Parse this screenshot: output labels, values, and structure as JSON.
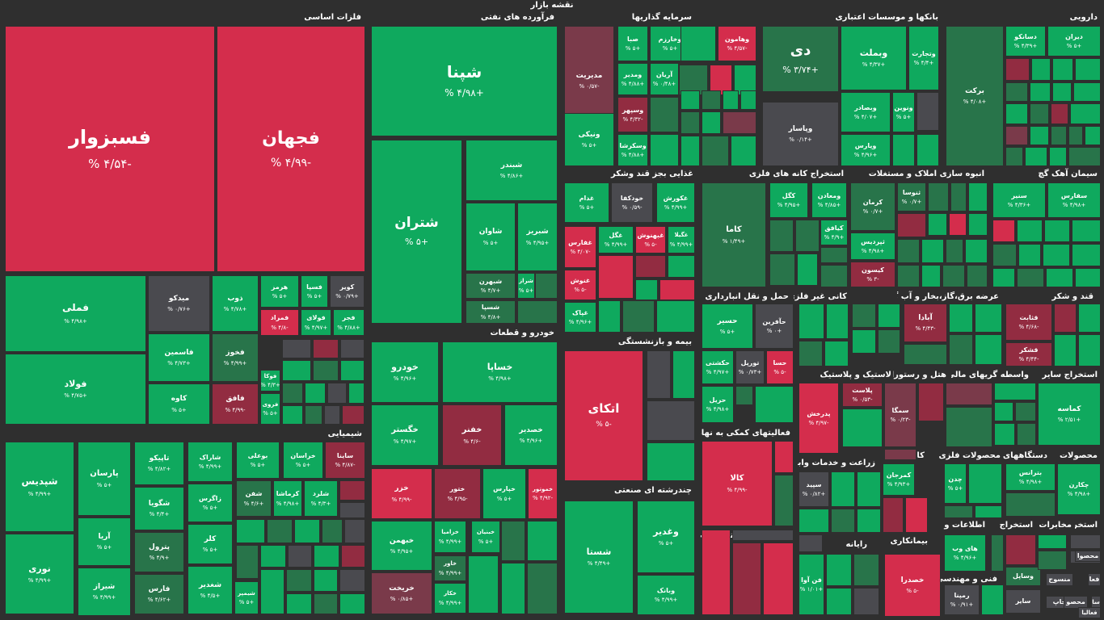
{
  "title": "نقشه بازار",
  "colors": {
    "green": "#0fa95e",
    "dark_green": "#28744a",
    "gray_green": "#3f6852",
    "neutral": "#4a4a4f",
    "red": "#d42d4c",
    "dark_red": "#922c41",
    "background": "#2f2f2f"
  },
  "sectors": [
    {
      "key": "s1",
      "label": "فلزات اساسی"
    },
    {
      "key": "s2",
      "label": "فرآورده های نفتی"
    },
    {
      "key": "s3",
      "label": "سرمایه گذاریها"
    },
    {
      "key": "s4",
      "label": "بانکها و موسسات اعتباری"
    },
    {
      "key": "s5",
      "label": "دارویی"
    },
    {
      "key": "s6",
      "label": "شیمیایی"
    },
    {
      "key": "s7",
      "label": "خودرو و قطعات"
    },
    {
      "key": "s8",
      "label": "غذایی بجز قند وشکر"
    },
    {
      "key": "s9",
      "label": "استخراج کانه های فلزی"
    },
    {
      "key": "s10",
      "label": "انبوه سازی املاک و مستغلات"
    },
    {
      "key": "s11",
      "label": "سیمان آهک گچ"
    },
    {
      "key": "s12",
      "label": "حمل و نقل انبارداری و"
    },
    {
      "key": "s13",
      "label": "کانی غیر فلزی"
    },
    {
      "key": "s14",
      "label": "عرضه برق،گاز،بخار و آب گرم"
    },
    {
      "key": "s15",
      "label": "قند و شکر"
    },
    {
      "key": "s16",
      "label": "بیمه و بازنشستگی"
    },
    {
      "key": "s17",
      "label": "لاستیک و پلاستیک"
    },
    {
      "key": "s18",
      "label": "هتل و رستوران"
    },
    {
      "key": "s19",
      "label": "واسطه گریهای مالی"
    },
    {
      "key": "s20",
      "label": "استخراج سایر"
    },
    {
      "key": "s21",
      "label": "فعالیتهای کمکی به نهاد"
    },
    {
      "key": "s22",
      "label": "زراعت و خدمات وابسته"
    },
    {
      "key": "s23",
      "label": "کاشی و"
    },
    {
      "key": "s24",
      "label": "محصولات فلزی"
    },
    {
      "key": "s25",
      "label": "دستگاههای"
    },
    {
      "key": "s26",
      "label": "محصولات"
    },
    {
      "key": "s27",
      "label": "چندرشته ای صنعتی"
    },
    {
      "key": "s28",
      "label": "ماشین آلات و تجهیزات"
    },
    {
      "key": "s29",
      "label": "رایانه"
    },
    {
      "key": "s30",
      "label": "بیمانکاری"
    },
    {
      "key": "s31",
      "label": "اطلاعات و"
    },
    {
      "key": "s32",
      "label": "فنی و مهندسی"
    },
    {
      "key": "s33",
      "label": "استخراج"
    },
    {
      "key": "s34",
      "label": "مخابرات"
    },
    {
      "key": "s35",
      "label": "استخر"
    }
  ],
  "tiles": [
    {
      "symbol": "فسبزوار",
      "change": "-۴/۵۴ %"
    },
    {
      "symbol": "فجهان",
      "change": "-۴/۹۹ %"
    },
    {
      "symbol": "فملی",
      "change": "+۴/۹۸ %"
    },
    {
      "symbol": "فولاد",
      "change": "+۴/۷۵ %"
    },
    {
      "symbol": "میدکو",
      "change": "+۰/۷۶ %"
    },
    {
      "symbol": "فاسمین",
      "change": "+۴/۷۳ %"
    },
    {
      "symbol": "کاوه",
      "change": "+۵ %"
    },
    {
      "symbol": "ذوب",
      "change": "+۴/۷۸ %"
    },
    {
      "symbol": "هرمز",
      "change": "+۵ %"
    },
    {
      "symbol": "فسپا",
      "change": "+۵ %"
    },
    {
      "symbol": "کویر",
      "change": "+۰/۷۹ %"
    },
    {
      "symbol": "فمراد",
      "change": "-۴/۸ %"
    },
    {
      "symbol": "فولای",
      "change": "+۴/۹۷ %"
    },
    {
      "symbol": "فجر",
      "change": "+۴/۸۸ %"
    },
    {
      "symbol": "فخوز",
      "change": "+۴/۹۹ %"
    },
    {
      "symbol": "فوکا",
      "change": "+۴/۳ %"
    },
    {
      "symbol": "فافق",
      "change": "-۴/۹۹ %"
    },
    {
      "symbol": "فروی",
      "change": "+۵ %"
    },
    {
      "symbol": "شپنا",
      "change": "+۴/۹۸ %"
    },
    {
      "symbol": "شتران",
      "change": "+۵ %"
    },
    {
      "symbol": "شبندر",
      "change": "+۴/۸۶ %"
    },
    {
      "symbol": "شاوان",
      "change": "+۵ %"
    },
    {
      "symbol": "شبریز",
      "change": "+۴/۹۵ %"
    },
    {
      "symbol": "شبهرن",
      "change": "+۴/۷ %"
    },
    {
      "symbol": "شراز",
      "change": "+۵ %"
    },
    {
      "symbol": "شسپا",
      "change": "+۴/۸ %"
    },
    {
      "symbol": "مدیریت",
      "change": "-۰/۵۷ %"
    },
    {
      "symbol": "صبا",
      "change": "+۵ %"
    },
    {
      "symbol": "وخارزم",
      "change": "+۵ %"
    },
    {
      "symbol": "وهامون",
      "change": "-۴/۵۷ %"
    },
    {
      "symbol": "ومدیر",
      "change": "+۴/۸۸ %"
    },
    {
      "symbol": "آریان",
      "change": "+۰/۴۸ %"
    },
    {
      "symbol": "وسپهر",
      "change": "-۴/۳۲ %"
    },
    {
      "symbol": "ونیکی",
      "change": "+۵ %"
    },
    {
      "symbol": "وسکرشا",
      "change": "+۴/۸۸ %"
    },
    {
      "symbol": "دی",
      "change": "+۳/۷۴ %"
    },
    {
      "symbol": "وبملت",
      "change": "+۴/۳۷ %"
    },
    {
      "symbol": "وتجارت",
      "change": "+۴/۴ %"
    },
    {
      "symbol": "وبصادر",
      "change": "+۴/۰۷ %"
    },
    {
      "symbol": "ونوین",
      "change": "+۵ %"
    },
    {
      "symbol": "وپاسار",
      "change": "+۰/۱۴ %"
    },
    {
      "symbol": "وپارس",
      "change": "+۴/۹۶ %"
    },
    {
      "symbol": "برکت",
      "change": "+۴/۰۸ %"
    },
    {
      "symbol": "دسانکو",
      "change": "+۴/۳۹ %"
    },
    {
      "symbol": "دیران",
      "change": "+۵ %"
    },
    {
      "symbol": "شپدیس",
      "change": "+۴/۹۹ %"
    },
    {
      "symbol": "نوری",
      "change": "+۴/۹۹ %"
    },
    {
      "symbol": "پارسان",
      "change": "+۵ %"
    },
    {
      "symbol": "آریا",
      "change": "+۵ %"
    },
    {
      "symbol": "شیراز",
      "change": "+۴/۹۹ %"
    },
    {
      "symbol": "تاپیکو",
      "change": "+۴/۸۲ %"
    },
    {
      "symbol": "شگویا",
      "change": "+۴/۴ %"
    },
    {
      "symbol": "پترول",
      "change": "+۴/۹ %"
    },
    {
      "symbol": "فارس",
      "change": "+۴/۶۲ %"
    },
    {
      "symbol": "شاراک",
      "change": "+۴/۹۹ %"
    },
    {
      "symbol": "زاگرس",
      "change": "+۵ %"
    },
    {
      "symbol": "کلر",
      "change": "+۵ %"
    },
    {
      "symbol": "شغدیر",
      "change": "+۴/۵ %"
    },
    {
      "symbol": "بوعلی",
      "change": "+۵ %"
    },
    {
      "symbol": "خراسان",
      "change": "+۵ %"
    },
    {
      "symbol": "ساینا",
      "change": "-۴/۸۷ %"
    },
    {
      "symbol": "شفن",
      "change": "+۴/۶ %"
    },
    {
      "symbol": "کرماشا",
      "change": "+۴/۹۸ %"
    },
    {
      "symbol": "شلرد",
      "change": "+۴/۳ %"
    },
    {
      "symbol": "شیمپر",
      "change": "+۵ %"
    },
    {
      "symbol": "خودرو",
      "change": "+۴/۹۶ %"
    },
    {
      "symbol": "خساپا",
      "change": "+۴/۹۸ %"
    },
    {
      "symbol": "خگستر",
      "change": "+۴/۹۷ %"
    },
    {
      "symbol": "خفنر",
      "change": "-۴/۶ %"
    },
    {
      "symbol": "خصدیر",
      "change": "+۴/۹۶ %"
    },
    {
      "symbol": "خزر",
      "change": "-۴/۹۹ %"
    },
    {
      "symbol": "ختور",
      "change": "-۴/۹۵ %"
    },
    {
      "symbol": "خپارس",
      "change": "+۵ %"
    },
    {
      "symbol": "خموتور",
      "change": "-۴/۹۲ %"
    },
    {
      "symbol": "خبهمن",
      "change": "+۴/۹۵ %"
    },
    {
      "symbol": "خزامیا",
      "change": "+۴/۹۹ %"
    },
    {
      "symbol": "خبنیان",
      "change": "+۵ %"
    },
    {
      "symbol": "خاور",
      "change": "+۴/۹۹ %"
    },
    {
      "symbol": "خکار",
      "change": "+۴/۹۹ %"
    },
    {
      "symbol": "خریخت",
      "change": "+۰/۸۵ %"
    },
    {
      "symbol": "غدام",
      "change": "+۵ %"
    },
    {
      "symbol": "خودکفا",
      "change": "-۰/۵۹ %"
    },
    {
      "symbol": "غکورش",
      "change": "+۴/۹۹ %"
    },
    {
      "symbol": "غفارس",
      "change": "-۴/۰۷ %"
    },
    {
      "symbol": "غگل",
      "change": "+۴/۹۹ %"
    },
    {
      "symbol": "غبهنوش",
      "change": "-۵ %"
    },
    {
      "symbol": "غگیلا",
      "change": "+۴/۹۹ %"
    },
    {
      "symbol": "غنوش",
      "change": "-۵ %"
    },
    {
      "symbol": "غپاک",
      "change": "+۴/۹۶ %"
    },
    {
      "symbol": "کاما",
      "change": "+۱/۴۹ %"
    },
    {
      "symbol": "کگل",
      "change": "+۴/۹۵ %"
    },
    {
      "symbol": "ومعادن",
      "change": "+۴/۸۵ %"
    },
    {
      "symbol": "کیافق",
      "change": "+۴/۹ %"
    },
    {
      "symbol": "کرمان",
      "change": "+۰/۷ %"
    },
    {
      "symbol": "ثنوسا",
      "change": "+۰/۷ %"
    },
    {
      "symbol": "ثپردیس",
      "change": "+۴/۹۸ %"
    },
    {
      "symbol": "کیسون",
      "change": "-۳ %"
    },
    {
      "symbol": "سنیر",
      "change": "+۴/۳۶ %"
    },
    {
      "symbol": "سفارس",
      "change": "+۴/۹۸ %"
    },
    {
      "symbol": "حسیر",
      "change": "+۵ %"
    },
    {
      "symbol": "حآفرین",
      "change": "+۰ %"
    },
    {
      "symbol": "حکشتی",
      "change": "+۴/۹۷ %"
    },
    {
      "symbol": "تورپل",
      "change": "+۰/۷۳ %"
    },
    {
      "symbol": "حسا",
      "change": "-۵ %"
    },
    {
      "symbol": "حریل",
      "change": "+۴/۹۸ %"
    },
    {
      "symbol": "آبادا",
      "change": "-۴/۴۳ %"
    },
    {
      "symbol": "قثابت",
      "change": "-۴/۶۸ %"
    },
    {
      "symbol": "قشکر",
      "change": "-۴/۴۴ %"
    },
    {
      "symbol": "اتکای",
      "change": "-۵ %"
    },
    {
      "symbol": "پلاست",
      "change": "-۰/۵۳ %"
    },
    {
      "symbol": "پدرخش",
      "change": "-۴/۹۷ %"
    },
    {
      "symbol": "سمگا",
      "change": "-۰/۲۳ %"
    },
    {
      "symbol": "کماسه",
      "change": "+۲/۵۱ %"
    },
    {
      "symbol": "کالا",
      "change": "-۴/۹۹ %"
    },
    {
      "symbol": "سپید",
      "change": "+۰/۸۲ %"
    },
    {
      "symbol": "کمرجان",
      "change": "+۴/۹۳ %"
    },
    {
      "symbol": "چدن",
      "change": "+۵ %"
    },
    {
      "symbol": "بترانس",
      "change": "+۴/۹۸ %"
    },
    {
      "symbol": "چکارن",
      "change": "+۴/۹۸ %"
    },
    {
      "symbol": "شستا",
      "change": "+۴/۴۹ %"
    },
    {
      "symbol": "وغدیر",
      "change": "+۵ %"
    },
    {
      "symbol": "وبانک",
      "change": "+۴/۹۹ %"
    },
    {
      "symbol": "فن آوا",
      "change": "+۱/۰۱ %"
    },
    {
      "symbol": "خصدرا",
      "change": "-۵ %"
    },
    {
      "symbol": "های وب",
      "change": "+۴/۹۶ %"
    },
    {
      "symbol": "رمپنا",
      "change": "+۰/۹۱ %"
    },
    {
      "symbol": "وساپل",
      "change": ""
    },
    {
      "symbol": "سایر",
      "change": ""
    },
    {
      "symbol": "خرده",
      "change": ""
    },
    {
      "symbol": "محصوا",
      "change": ""
    },
    {
      "symbol": "منسوج",
      "change": ""
    },
    {
      "symbol": "چاپ",
      "change": ""
    },
    {
      "symbol": "فعا",
      "change": ""
    },
    {
      "symbol": "محصو",
      "change": ""
    },
    {
      "symbol": "سا",
      "change": ""
    },
    {
      "symbol": "فعالیا",
      "change": ""
    }
  ]
}
